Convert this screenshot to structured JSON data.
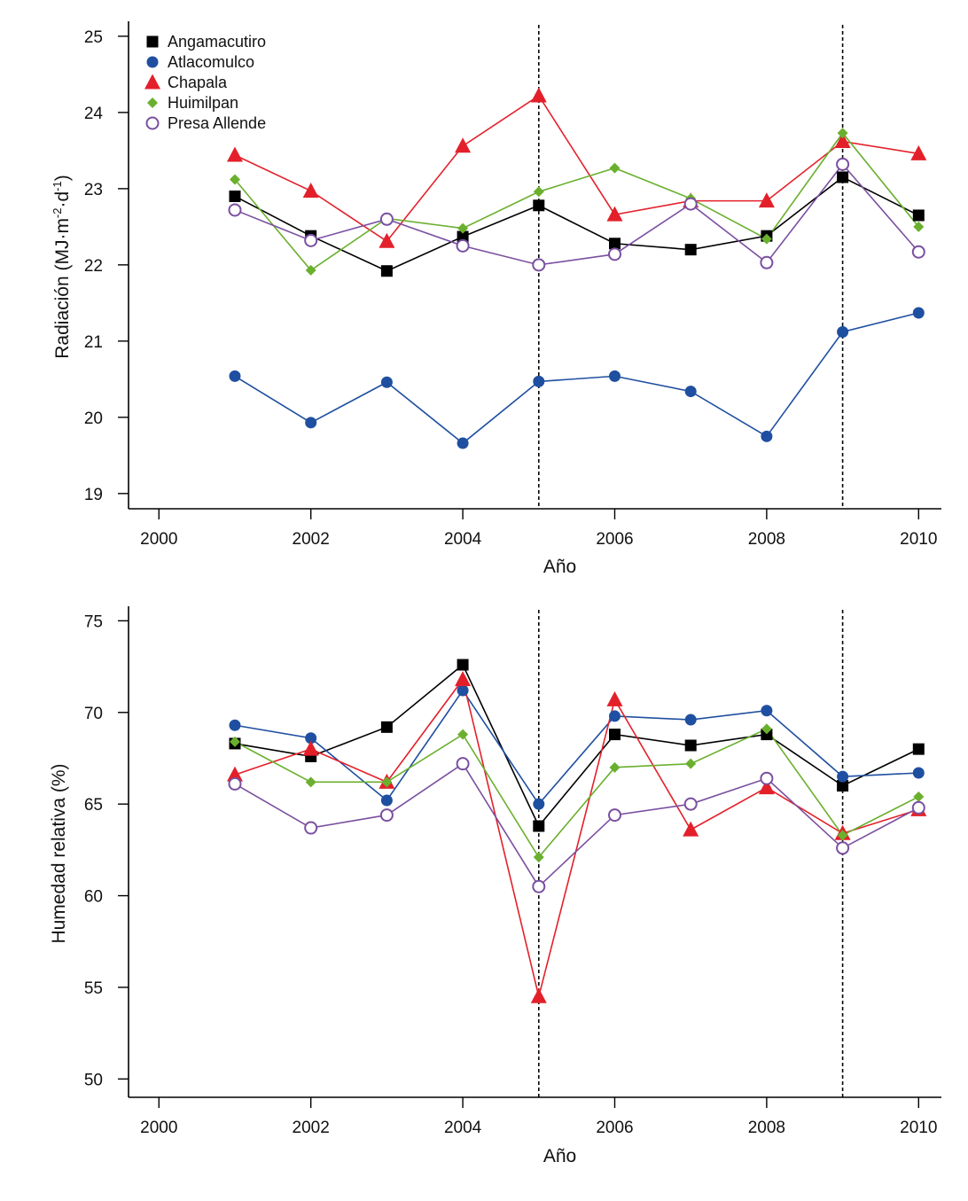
{
  "chart_data": [
    {
      "type": "line",
      "id": "radiacion",
      "title": "",
      "xlabel": "Año",
      "ylabel": "Radiación (MJ·m",
      "ylabel_sup1": "-2",
      "ylabel_mid": "·d",
      "ylabel_sup2": "-1",
      "ylabel_end": ")",
      "xlim": [
        1999.6,
        2010.3
      ],
      "ylim": [
        18.8,
        25.15
      ],
      "xticks": [
        2000,
        2002,
        2004,
        2006,
        2008,
        2010
      ],
      "xtick_labels": [
        "2000",
        "2002",
        "2004",
        "2006",
        "2008",
        "2010"
      ],
      "yticks": [
        19,
        20,
        21,
        22,
        23,
        24,
        25
      ],
      "ytick_labels": [
        "19",
        "20",
        "21",
        "22",
        "23",
        "24",
        "25"
      ],
      "vlines": [
        2005,
        2009
      ],
      "x": [
        2001,
        2002,
        2003,
        2004,
        2005,
        2006,
        2007,
        2008,
        2009,
        2010
      ],
      "legend": {
        "placement": "top-left",
        "show": true
      },
      "series": [
        {
          "name": "Angamacutiro",
          "color": "#000000",
          "marker": "square",
          "values": [
            22.9,
            22.38,
            21.92,
            22.37,
            22.78,
            22.28,
            22.2,
            22.38,
            23.15,
            22.65
          ]
        },
        {
          "name": "Atlacomulco",
          "color": "#1f4fa0",
          "marker": "circle",
          "values": [
            20.54,
            19.93,
            20.46,
            19.66,
            20.47,
            20.54,
            20.34,
            19.75,
            21.12,
            21.37
          ]
        },
        {
          "name": "Chapala",
          "color": "#e3202a",
          "marker": "triangle",
          "values": [
            23.44,
            22.97,
            22.31,
            23.56,
            24.22,
            22.66,
            22.84,
            22.84,
            23.62,
            23.46
          ]
        },
        {
          "name": "Huimilpan",
          "color": "#6ab02e",
          "marker": "diamond",
          "values": [
            23.12,
            21.93,
            22.61,
            22.48,
            22.96,
            23.27,
            22.87,
            22.34,
            23.73,
            22.5
          ]
        },
        {
          "name": "Presa Allende",
          "color": "#7a4fa0",
          "marker": "open-circle",
          "values": [
            22.72,
            22.32,
            22.6,
            22.25,
            22.0,
            22.14,
            22.8,
            22.03,
            23.32,
            22.17
          ]
        }
      ]
    },
    {
      "type": "line",
      "id": "humedad",
      "title": "",
      "xlabel": "Año",
      "ylabel": "Humedad relativa (%)",
      "xlim": [
        1999.6,
        2010.3
      ],
      "ylim": [
        49,
        75.6
      ],
      "xticks": [
        2000,
        2002,
        2004,
        2006,
        2008,
        2010
      ],
      "xtick_labels": [
        "2000",
        "2002",
        "2004",
        "2006",
        "2008",
        "2010"
      ],
      "yticks": [
        50,
        55,
        60,
        65,
        70,
        75
      ],
      "ytick_labels": [
        "50",
        "55",
        "60",
        "65",
        "70",
        "75"
      ],
      "vlines": [
        2005,
        2009
      ],
      "x": [
        2001,
        2002,
        2003,
        2004,
        2005,
        2006,
        2007,
        2008,
        2009,
        2010
      ],
      "legend": {
        "show": false
      },
      "series": [
        {
          "name": "Angamacutiro",
          "color": "#000000",
          "marker": "square",
          "values": [
            68.3,
            67.6,
            69.2,
            72.6,
            63.8,
            68.8,
            68.2,
            68.8,
            66.0,
            68.0
          ]
        },
        {
          "name": "Atlacomulco",
          "color": "#1f4fa0",
          "marker": "circle",
          "values": [
            69.3,
            68.6,
            65.2,
            71.2,
            65.0,
            69.8,
            69.6,
            70.1,
            66.5,
            66.7
          ]
        },
        {
          "name": "Chapala",
          "color": "#e3202a",
          "marker": "triangle",
          "values": [
            66.6,
            68.0,
            66.2,
            71.8,
            54.5,
            70.7,
            63.6,
            65.9,
            63.4,
            64.7
          ]
        },
        {
          "name": "Huimilpan",
          "color": "#6ab02e",
          "marker": "diamond",
          "values": [
            68.4,
            66.2,
            66.2,
            68.8,
            62.1,
            67.0,
            67.2,
            69.1,
            63.3,
            65.4
          ]
        },
        {
          "name": "Presa Allende",
          "color": "#7a4fa0",
          "marker": "open-circle",
          "values": [
            66.1,
            63.7,
            64.4,
            67.2,
            60.5,
            64.4,
            65.0,
            66.4,
            62.6,
            64.8
          ]
        }
      ]
    }
  ]
}
